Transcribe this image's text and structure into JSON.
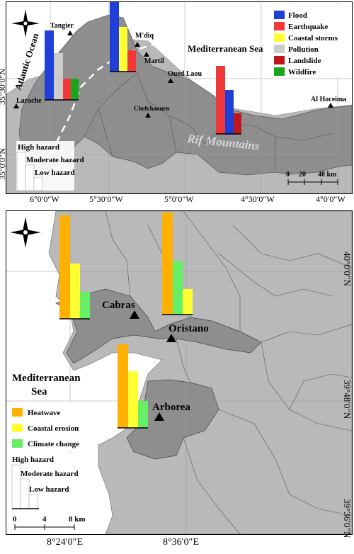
{
  "top_map": {
    "sea_label": "Mediterranean Sea",
    "ocean_label": "Atlantic Ocean",
    "mountains_label": "Rif Mountains",
    "cities": [
      {
        "name": "Tangier"
      },
      {
        "name": "M'diq"
      },
      {
        "name": "Martil"
      },
      {
        "name": "Oued Laou"
      },
      {
        "name": "Chefchaouen"
      },
      {
        "name": "Larache"
      },
      {
        "name": "Al Hoceima"
      }
    ],
    "legend": [
      {
        "label": "Flood",
        "color": "#1f3fd6"
      },
      {
        "label": "Earthquake",
        "color": "#f0383a"
      },
      {
        "label": "Coastal storms",
        "color": "#ffff33"
      },
      {
        "label": "Pollution",
        "color": "#cccccc"
      },
      {
        "label": "Landslide",
        "color": "#c0161b"
      },
      {
        "label": "Wildfire",
        "color": "#1aa61a"
      }
    ],
    "hazard_scale": {
      "high": "High hazard",
      "moderate": "Moderate hazard",
      "low": "Low hazard"
    },
    "scale_bar": {
      "ticks": [
        "0",
        "20",
        "40 km"
      ]
    },
    "x_ticks": [
      "6°0′0″W",
      "5°30′0″W",
      "5°0′0″W",
      "4°30′0″W",
      "4°0′0″W"
    ],
    "y_ticks": [
      "35°30′0″N",
      "35°0′0″N"
    ]
  },
  "bottom_map": {
    "sea_label_line1": "Mediterranean",
    "sea_label_line2": "Sea",
    "towns": [
      {
        "name": "Cabras"
      },
      {
        "name": "Oristano"
      },
      {
        "name": "Arborea"
      }
    ],
    "legend": [
      {
        "label": "Heatwave",
        "color": "#ffb000"
      },
      {
        "label": "Coastal erosion",
        "color": "#ffff33"
      },
      {
        "label": "Climate change",
        "color": "#66ee66"
      }
    ],
    "hazard_scale": {
      "high": "High hazard",
      "moderate": "Moderate hazard",
      "low": "Low hazard"
    },
    "scale_bar": {
      "ticks": [
        "0",
        "4",
        "8 km"
      ]
    },
    "x_ticks": [
      "8°24′0″E",
      "8°36′0″E"
    ],
    "y_ticks": [
      "40°0′0″N",
      "39°48′0″N",
      "39°36′0″N"
    ]
  }
}
